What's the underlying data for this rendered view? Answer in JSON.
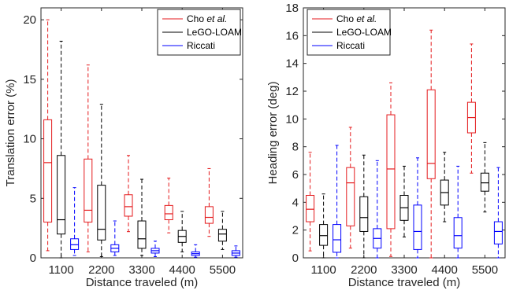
{
  "chart_data": [
    {
      "type": "box",
      "xlabel": "Distance traveled (m)",
      "ylabel": "Translation error (%)",
      "categories": [
        "1100",
        "2200",
        "3300",
        "4400",
        "5500"
      ],
      "ylim": [
        0,
        21
      ],
      "yticks": [
        0,
        5,
        10,
        15,
        20
      ],
      "legend": {
        "position": "top-right",
        "entries": [
          "Cho et al.",
          "LeGO-LOAM",
          "Riccati"
        ]
      },
      "series": [
        {
          "name": "Cho et al.",
          "color": "#e41a1c",
          "boxes": [
            {
              "whisker_low": 0.6,
              "q1": 3.0,
              "median": 8.0,
              "q3": 11.6,
              "whisker_high": 20.0
            },
            {
              "whisker_low": 0.5,
              "q1": 3.0,
              "median": 4.0,
              "q3": 8.3,
              "whisker_high": 16.2
            },
            {
              "whisker_low": 2.2,
              "q1": 3.5,
              "median": 4.3,
              "q3": 5.3,
              "whisker_high": 8.6
            },
            {
              "whisker_low": 2.1,
              "q1": 3.2,
              "median": 3.7,
              "q3": 4.4,
              "whisker_high": 6.7
            },
            {
              "whisker_low": 1.8,
              "q1": 2.9,
              "median": 3.4,
              "q3": 4.3,
              "whisker_high": 7.5
            }
          ]
        },
        {
          "name": "LeGO-LOAM",
          "color": "#000000",
          "boxes": [
            {
              "whisker_low": 0.0,
              "q1": 2.0,
              "median": 3.2,
              "q3": 8.6,
              "whisker_high": 18.2
            },
            {
              "whisker_low": 0.1,
              "q1": 1.5,
              "median": 2.4,
              "q3": 6.1,
              "whisker_high": 12.9
            },
            {
              "whisker_low": 0.2,
              "q1": 0.8,
              "median": 1.6,
              "q3": 3.1,
              "whisker_high": 6.6
            },
            {
              "whisker_low": 0.5,
              "q1": 1.3,
              "median": 1.8,
              "q3": 2.3,
              "whisker_high": 3.9
            },
            {
              "whisker_low": 0.7,
              "q1": 1.4,
              "median": 2.0,
              "q3": 2.4,
              "whisker_high": 3.9
            }
          ]
        },
        {
          "name": "Riccati",
          "color": "#0000ff",
          "boxes": [
            {
              "whisker_low": 0.2,
              "q1": 0.7,
              "median": 1.1,
              "q3": 1.6,
              "whisker_high": 5.9
            },
            {
              "whisker_low": 0.2,
              "q1": 0.5,
              "median": 0.8,
              "q3": 1.1,
              "whisker_high": 3.1
            },
            {
              "whisker_low": 0.1,
              "q1": 0.4,
              "median": 0.6,
              "q3": 0.8,
              "whisker_high": 1.4
            },
            {
              "whisker_low": 0.05,
              "q1": 0.2,
              "median": 0.35,
              "q3": 0.5,
              "whisker_high": 1.1
            },
            {
              "whisker_low": 0.05,
              "q1": 0.2,
              "median": 0.4,
              "q3": 0.6,
              "whisker_high": 1.0
            }
          ]
        }
      ]
    },
    {
      "type": "box",
      "xlabel": "Distance traveled (m)",
      "ylabel": "Heading error (deg)",
      "categories": [
        "1100",
        "2200",
        "3300",
        "4400",
        "5500"
      ],
      "ylim": [
        0,
        18
      ],
      "yticks": [
        0,
        2,
        4,
        6,
        8,
        10,
        12,
        14,
        16,
        18
      ],
      "legend": {
        "position": "top-right",
        "entries": [
          "Cho et al.",
          "LeGO-LOAM",
          "Riccati"
        ]
      },
      "series": [
        {
          "name": "Cho et al.",
          "color": "#e41a1c",
          "boxes": [
            {
              "whisker_low": 0.5,
              "q1": 2.6,
              "median": 3.5,
              "q3": 4.5,
              "whisker_high": 7.6
            },
            {
              "whisker_low": 0.7,
              "q1": 2.3,
              "median": 5.4,
              "q3": 6.5,
              "whisker_high": 9.4
            },
            {
              "whisker_low": 0.1,
              "q1": 2.1,
              "median": 6.4,
              "q3": 10.3,
              "whisker_high": 12.6
            },
            {
              "whisker_low": 0.0,
              "q1": 5.7,
              "median": 6.8,
              "q3": 12.1,
              "whisker_high": 16.4
            },
            {
              "whisker_low": 6.1,
              "q1": 9.0,
              "median": 10.1,
              "q3": 11.2,
              "whisker_high": 15.4
            }
          ]
        },
        {
          "name": "LeGO-LOAM",
          "color": "#000000",
          "boxes": [
            {
              "whisker_low": 0.0,
              "q1": 0.9,
              "median": 1.6,
              "q3": 2.4,
              "whisker_high": 4.6
            },
            {
              "whisker_low": 0.0,
              "q1": 1.9,
              "median": 2.9,
              "q3": 4.4,
              "whisker_high": 7.4
            },
            {
              "whisker_low": 1.5,
              "q1": 2.7,
              "median": 3.6,
              "q3": 4.5,
              "whisker_high": 6.6
            },
            {
              "whisker_low": 2.6,
              "q1": 3.8,
              "median": 4.7,
              "q3": 5.6,
              "whisker_high": 7.6
            },
            {
              "whisker_low": 3.3,
              "q1": 4.8,
              "median": 5.4,
              "q3": 6.1,
              "whisker_high": 8.3
            }
          ]
        },
        {
          "name": "Riccati",
          "color": "#0000ff",
          "boxes": [
            {
              "whisker_low": 0.0,
              "q1": 0.4,
              "median": 1.3,
              "q3": 2.4,
              "whisker_high": 8.1
            },
            {
              "whisker_low": 0.0,
              "q1": 0.7,
              "median": 1.4,
              "q3": 2.1,
              "whisker_high": 7.0
            },
            {
              "whisker_low": 0.0,
              "q1": 0.6,
              "median": 1.9,
              "q3": 3.8,
              "whisker_high": 7.2
            },
            {
              "whisker_low": 0.0,
              "q1": 0.7,
              "median": 1.6,
              "q3": 2.9,
              "whisker_high": 6.6
            },
            {
              "whisker_low": 0.0,
              "q1": 1.0,
              "median": 1.9,
              "q3": 2.6,
              "whisker_high": 6.5
            }
          ]
        }
      ]
    }
  ]
}
